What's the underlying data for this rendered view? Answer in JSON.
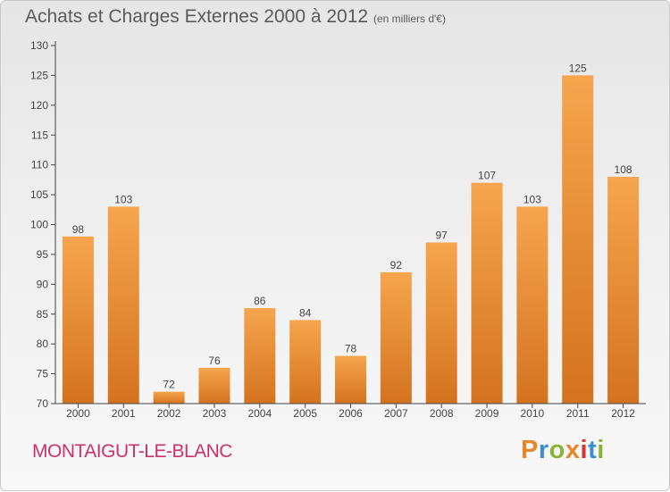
{
  "header": {
    "title": "Achats et Charges Externes 2000 à 2012",
    "unit": "(en milliers d'€)"
  },
  "footer": {
    "commune": "MONTAIGUT-LE-BLANC",
    "logo_text": "Proxiti",
    "logo_colors": [
      "#e8842a",
      "#3b8fd1",
      "#8ab33a",
      "#e8842a",
      "#d8332c",
      "#3b8fd1",
      "#8ab33a"
    ]
  },
  "colors": {
    "bar_light": "#f6a54e",
    "bar_dark": "#d4731f",
    "axis": "#444444",
    "text": "#444444",
    "commune": "#c8336b"
  },
  "chart_data": {
    "type": "bar",
    "categories": [
      "2000",
      "2001",
      "2002",
      "2003",
      "2004",
      "2005",
      "2006",
      "2007",
      "2008",
      "2009",
      "2010",
      "2011",
      "2012"
    ],
    "values": [
      98,
      103,
      72,
      76,
      86,
      84,
      78,
      92,
      97,
      107,
      103,
      125,
      108
    ],
    "title": "Achats et Charges Externes 2000 à 2012",
    "xlabel": "",
    "ylabel": "",
    "ylim": [
      70,
      130
    ],
    "yticks": [
      70,
      75,
      80,
      85,
      90,
      95,
      100,
      105,
      110,
      115,
      120,
      125,
      130
    ],
    "grid": false,
    "legend": "none"
  }
}
